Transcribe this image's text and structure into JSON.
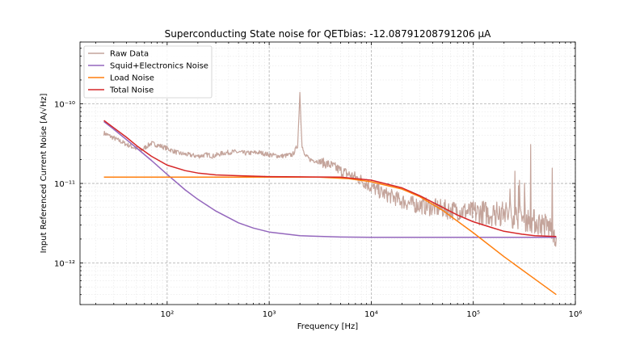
{
  "chart_data": {
    "type": "line",
    "title": "Superconducting State noise for QETbias: -12.08791208791206 μA",
    "xlabel": "Frequency [Hz]",
    "ylabel": "Input Referenced Current Noise [A/√Hz]",
    "xscale": "log",
    "yscale": "log",
    "xlim": [
      14,
      1000000
    ],
    "ylim": [
      3e-13,
      6e-10
    ],
    "grid": true,
    "legend_position": "top-left",
    "x_ticks": [
      {
        "value": 100,
        "label": "10²"
      },
      {
        "value": 1000,
        "label": "10³"
      },
      {
        "value": 10000,
        "label": "10⁴"
      },
      {
        "value": 100000,
        "label": "10⁵"
      },
      {
        "value": 1000000,
        "label": "10⁶"
      }
    ],
    "y_ticks": [
      {
        "value": 1e-12,
        "label": "10⁻¹²"
      },
      {
        "value": 1e-11,
        "label": "10⁻¹¹"
      },
      {
        "value": 1e-10,
        "label": "10⁻¹⁰"
      }
    ],
    "series": [
      {
        "name": "Raw Data",
        "color": "#c4a49b",
        "x": [
          24,
          40,
          55,
          70,
          90,
          100,
          130,
          160,
          200,
          250,
          280,
          350,
          450,
          600,
          800,
          1000,
          1300,
          1700,
          1900,
          2000,
          2050,
          2100,
          2200,
          2500,
          3000,
          4000,
          5000,
          6000,
          8000,
          10000,
          13000,
          16000,
          20000,
          25000,
          30000,
          40000,
          50000,
          60000,
          80000,
          100000,
          120000,
          150000,
          180000,
          200000,
          250000,
          300000,
          400000,
          500000,
          600000,
          650000
        ],
        "y": [
          4.3e-11,
          3.1e-11,
          2.6e-11,
          3.2e-11,
          2.9e-11,
          2.75e-11,
          2.4e-11,
          2.3e-11,
          2.2e-11,
          2.3e-11,
          2.2e-11,
          2.4e-11,
          2.5e-11,
          2.4e-11,
          2.45e-11,
          2.3e-11,
          2.2e-11,
          2.3e-11,
          3e-11,
          1.4e-10,
          6e-11,
          3e-11,
          2.3e-11,
          2e-11,
          1.9e-11,
          1.7e-11,
          1.45e-11,
          1.3e-11,
          1.1e-11,
          9e-12,
          7.5e-12,
          6.8e-12,
          6e-12,
          5.5e-12,
          5.3e-12,
          5e-12,
          4.8e-12,
          4.6e-12,
          4.5e-12,
          4.3e-12,
          4.3e-12,
          4.2e-12,
          4.1e-12,
          4.3e-12,
          3.9e-12,
          3.7e-12,
          3.3e-12,
          3e-12,
          2.7e-12,
          2.1e-12
        ]
      },
      {
        "name": "Squid+Electronics Noise",
        "color": "#9467bd",
        "x": [
          24,
          30,
          40,
          50,
          70,
          100,
          150,
          200,
          300,
          500,
          700,
          1000,
          2000,
          5000,
          10000,
          100000,
          650000
        ],
        "y": [
          6e-11,
          4.8e-11,
          3.55e-11,
          2.8e-11,
          1.95e-11,
          1.3e-11,
          8.3e-12,
          6.3e-12,
          4.5e-12,
          3.2e-12,
          2.75e-12,
          2.45e-12,
          2.2e-12,
          2.12e-12,
          2.1e-12,
          2.1e-12,
          2.1e-12
        ]
      },
      {
        "name": "Load Noise",
        "color": "#ff7f0e",
        "x": [
          24,
          1000,
          3000,
          6000,
          10000,
          20000,
          30000,
          50000,
          100000,
          200000,
          400000,
          650000
        ],
        "y": [
          1.2e-11,
          1.2e-11,
          1.2e-11,
          1.15e-11,
          1.05e-11,
          8.5e-12,
          6.8e-12,
          4.6e-12,
          2.4e-12,
          1.2e-12,
          6.3e-13,
          4e-13
        ]
      },
      {
        "name": "Total Noise",
        "color": "#d62728",
        "x": [
          24,
          30,
          40,
          50,
          70,
          100,
          150,
          200,
          300,
          500,
          1000,
          2000,
          5000,
          10000,
          20000,
          30000,
          50000,
          70000,
          100000,
          150000,
          200000,
          300000,
          400000,
          650000
        ],
        "y": [
          6.2e-11,
          5e-11,
          3.8e-11,
          3e-11,
          2.2e-11,
          1.7e-11,
          1.45e-11,
          1.35e-11,
          1.28e-11,
          1.25e-11,
          1.22e-11,
          1.21e-11,
          1.2e-11,
          1.1e-11,
          8.8e-12,
          7e-12,
          5e-12,
          4e-12,
          3.3e-12,
          2.8e-12,
          2.5e-12,
          2.3e-12,
          2.2e-12,
          2.15e-12
        ]
      }
    ]
  }
}
